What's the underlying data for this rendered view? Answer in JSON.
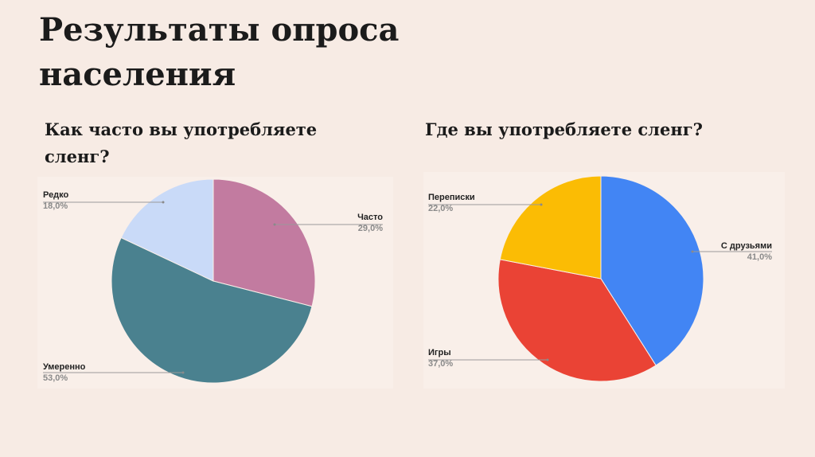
{
  "page": {
    "title": "Результаты опроса населения"
  },
  "chart_data": [
    {
      "type": "pie",
      "title": "Как часто вы употребляете сленг?",
      "categories": [
        "Часто",
        "Умеренно",
        "Редко"
      ],
      "values": [
        29.0,
        53.0,
        18.0
      ],
      "value_labels": [
        "29,0%",
        "53,0%",
        "18,0%"
      ],
      "colors": [
        "#c27ba0",
        "#4a818f",
        "#c9daf8"
      ]
    },
    {
      "type": "pie",
      "title": "Где вы употребляете сленг?",
      "categories": [
        "С друзьями",
        "Игры",
        "Переписки"
      ],
      "values": [
        41.0,
        37.0,
        22.0
      ],
      "value_labels": [
        "41,0%",
        "37,0%",
        "22,0%"
      ],
      "colors": [
        "#4285f4",
        "#ea4335",
        "#fbbc04"
      ]
    }
  ]
}
